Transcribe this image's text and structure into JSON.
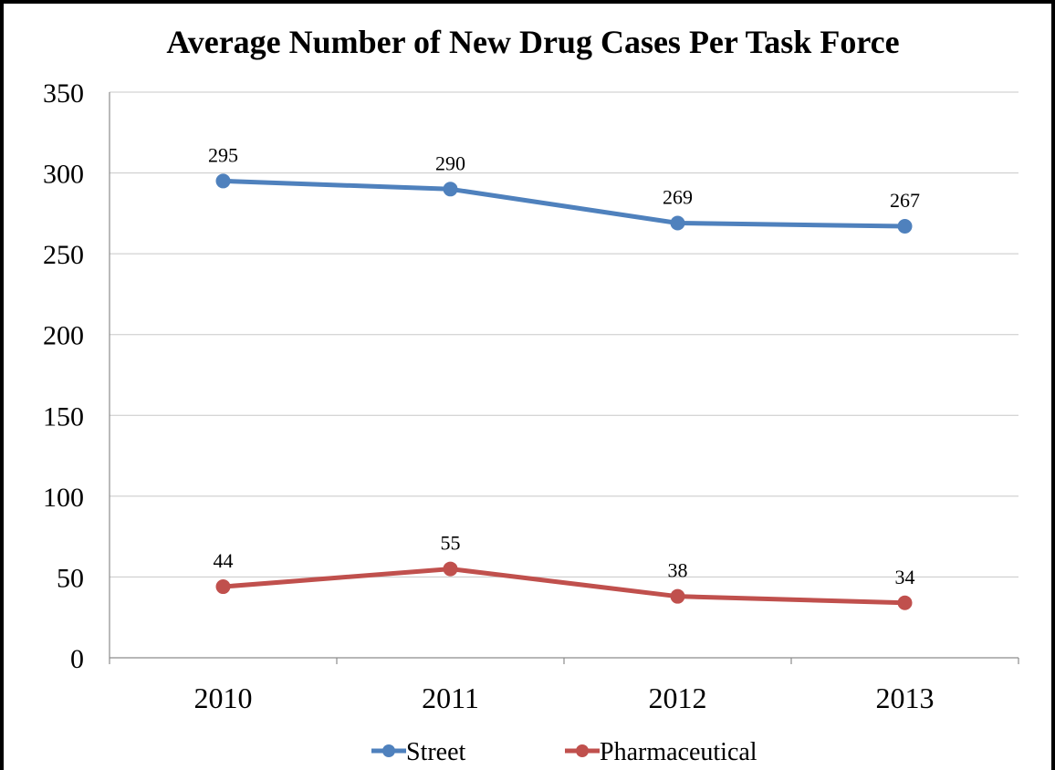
{
  "chart_data": {
    "type": "line",
    "title": "Average Number of New Drug Cases Per Task Force",
    "categories": [
      "2010",
      "2011",
      "2012",
      "2013"
    ],
    "ylim": [
      0,
      350
    ],
    "yticks": [
      0,
      50,
      100,
      150,
      200,
      250,
      300,
      350
    ],
    "grid": true,
    "legend_position": "bottom",
    "series": [
      {
        "name": "Street",
        "color": "#4f81bd",
        "values": [
          295,
          290,
          269,
          267
        ]
      },
      {
        "name": "Pharmaceutical",
        "color": "#c0504d",
        "values": [
          44,
          55,
          38,
          34
        ]
      }
    ]
  }
}
